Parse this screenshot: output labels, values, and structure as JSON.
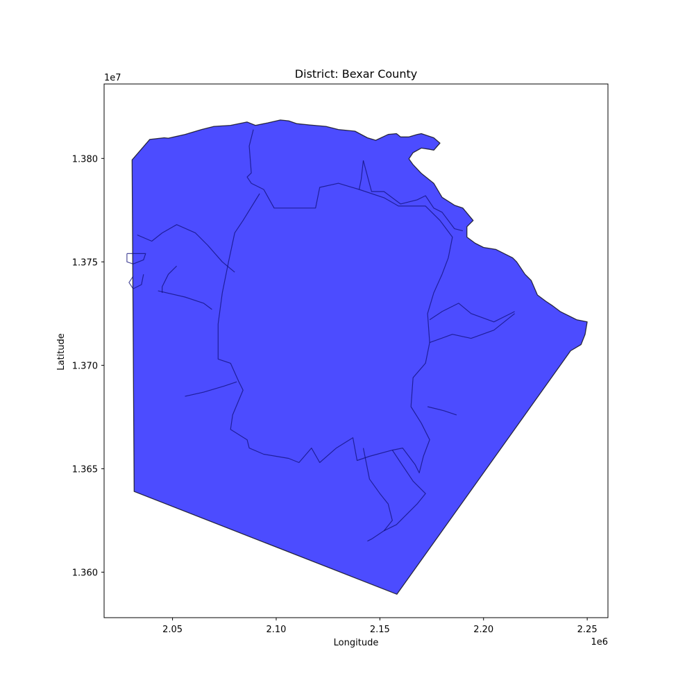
{
  "chart_data": {
    "type": "map",
    "title": "District: Bexar County",
    "xlabel": "Longitude",
    "ylabel": "Latitude",
    "x_offset_label": "1e6",
    "y_offset_label": "1e7",
    "xlim": [
      2.017,
      2.26
    ],
    "ylim": [
      13.578,
      13.836
    ],
    "x_ticks": [
      {
        "value": 2.05,
        "label": "2.05"
      },
      {
        "value": 2.1,
        "label": "2.10"
      },
      {
        "value": 2.15,
        "label": "2.15"
      },
      {
        "value": 2.2,
        "label": "2.20"
      },
      {
        "value": 2.25,
        "label": "2.25"
      }
    ],
    "y_ticks": [
      {
        "value": 13.6,
        "label": "1.360"
      },
      {
        "value": 13.65,
        "label": "1.365"
      },
      {
        "value": 13.7,
        "label": "1.370"
      },
      {
        "value": 13.75,
        "label": "1.375"
      },
      {
        "value": 13.8,
        "label": "1.380"
      }
    ],
    "fill_color": "#0000ff",
    "fill_opacity": 0.7,
    "edge_color": "#000000",
    "county_outline": [
      [
        2.0305,
        13.7993
      ],
      [
        2.039,
        13.8092
      ],
      [
        2.046,
        13.81
      ],
      [
        2.048,
        13.8098
      ],
      [
        2.056,
        13.8116
      ],
      [
        2.064,
        13.814
      ],
      [
        2.07,
        13.8155
      ],
      [
        2.078,
        13.816
      ],
      [
        2.086,
        13.8176
      ],
      [
        2.09,
        13.816
      ],
      [
        2.096,
        13.8172
      ],
      [
        2.102,
        13.8186
      ],
      [
        2.106,
        13.8182
      ],
      [
        2.11,
        13.8168
      ],
      [
        2.116,
        13.8162
      ],
      [
        2.124,
        13.8155
      ],
      [
        2.13,
        13.814
      ],
      [
        2.138,
        13.8132
      ],
      [
        2.144,
        13.81
      ],
      [
        2.148,
        13.8088
      ],
      [
        2.154,
        13.8116
      ],
      [
        2.158,
        13.812
      ],
      [
        2.16,
        13.8104
      ],
      [
        2.164,
        13.8104
      ],
      [
        2.168,
        13.8116
      ],
      [
        2.17,
        13.812
      ],
      [
        2.176,
        13.81
      ],
      [
        2.179,
        13.8074
      ],
      [
        2.176,
        13.804
      ],
      [
        2.174,
        13.8044
      ],
      [
        2.17,
        13.805
      ],
      [
        2.166,
        13.8028
      ],
      [
        2.164,
        13.7998
      ],
      [
        2.166,
        13.797
      ],
      [
        2.17,
        13.7928
      ],
      [
        2.176,
        13.788
      ],
      [
        2.18,
        13.7812
      ],
      [
        2.186,
        13.7774
      ],
      [
        2.19,
        13.776
      ],
      [
        2.195,
        13.77
      ],
      [
        2.192,
        13.767
      ],
      [
        2.192,
        13.762
      ],
      [
        2.196,
        13.759
      ],
      [
        2.2,
        13.757
      ],
      [
        2.206,
        13.756
      ],
      [
        2.21,
        13.754
      ],
      [
        2.214,
        13.752
      ],
      [
        2.216,
        13.75
      ],
      [
        2.22,
        13.744
      ],
      [
        2.223,
        13.741
      ],
      [
        2.226,
        13.734
      ],
      [
        2.23,
        13.731
      ],
      [
        2.233,
        13.729
      ],
      [
        2.237,
        13.726
      ],
      [
        2.241,
        13.724
      ],
      [
        2.245,
        13.722
      ],
      [
        2.25,
        13.721
      ],
      [
        2.249,
        13.715
      ],
      [
        2.247,
        13.71
      ],
      [
        2.242,
        13.707
      ],
      [
        2.1582,
        13.5893
      ],
      [
        2.0315,
        13.639
      ],
      [
        2.0305,
        13.7993
      ]
    ],
    "inner_boundaries": [
      [
        [
          2.089,
          13.814
        ],
        [
          2.087,
          13.806
        ],
        [
          2.088,
          13.793
        ],
        [
          2.086,
          13.791
        ],
        [
          2.088,
          13.788
        ],
        [
          2.094,
          13.785
        ],
        [
          2.099,
          13.776
        ],
        [
          2.11,
          13.776
        ],
        [
          2.119,
          13.776
        ],
        [
          2.121,
          13.786
        ],
        [
          2.13,
          13.788
        ],
        [
          2.14,
          13.785
        ],
        [
          2.141,
          13.79
        ],
        [
          2.142,
          13.799
        ]
      ],
      [
        [
          2.142,
          13.799
        ],
        [
          2.146,
          13.784
        ],
        [
          2.152,
          13.784
        ],
        [
          2.16,
          13.778
        ],
        [
          2.168,
          13.78
        ],
        [
          2.172,
          13.782
        ],
        [
          2.176,
          13.776
        ],
        [
          2.18,
          13.774
        ],
        [
          2.186,
          13.766
        ],
        [
          2.19,
          13.765
        ]
      ],
      [
        [
          2.092,
          13.783
        ],
        [
          2.084,
          13.77
        ],
        [
          2.08,
          13.764
        ],
        [
          2.077,
          13.75
        ],
        [
          2.074,
          13.735
        ],
        [
          2.072,
          13.72
        ],
        [
          2.072,
          13.703
        ],
        [
          2.078,
          13.701
        ],
        [
          2.082,
          13.692
        ],
        [
          2.084,
          13.688
        ],
        [
          2.079,
          13.676
        ],
        [
          2.078,
          13.669
        ],
        [
          2.086,
          13.664
        ],
        [
          2.087,
          13.66
        ],
        [
          2.094,
          13.657
        ],
        [
          2.106,
          13.655
        ],
        [
          2.111,
          13.653
        ],
        [
          2.117,
          13.66
        ],
        [
          2.121,
          13.653
        ],
        [
          2.129,
          13.66
        ],
        [
          2.137,
          13.665
        ],
        [
          2.139,
          13.654
        ],
        [
          2.145,
          13.656
        ],
        [
          2.156,
          13.659
        ],
        [
          2.161,
          13.66
        ],
        [
          2.167,
          13.652
        ],
        [
          2.169,
          13.648
        ],
        [
          2.171,
          13.656
        ],
        [
          2.174,
          13.664
        ],
        [
          2.17,
          13.672
        ],
        [
          2.165,
          13.68
        ],
        [
          2.166,
          13.694
        ],
        [
          2.172,
          13.701
        ],
        [
          2.174,
          13.711
        ],
        [
          2.173,
          13.725
        ],
        [
          2.176,
          13.735
        ],
        [
          2.18,
          13.744
        ],
        [
          2.183,
          13.752
        ],
        [
          2.185,
          13.762
        ],
        [
          2.179,
          13.77
        ],
        [
          2.172,
          13.777
        ],
        [
          2.159,
          13.777
        ],
        [
          2.152,
          13.781
        ],
        [
          2.14,
          13.785
        ]
      ],
      [
        [
          2.033,
          13.763
        ],
        [
          2.04,
          13.76
        ],
        [
          2.045,
          13.764
        ],
        [
          2.052,
          13.768
        ],
        [
          2.061,
          13.764
        ],
        [
          2.067,
          13.758
        ],
        [
          2.074,
          13.75
        ],
        [
          2.08,
          13.745
        ]
      ],
      [
        [
          2.043,
          13.736
        ],
        [
          2.056,
          13.733
        ],
        [
          2.065,
          13.73
        ],
        [
          2.069,
          13.727
        ]
      ],
      [
        [
          2.052,
          13.748
        ],
        [
          2.048,
          13.744
        ],
        [
          2.045,
          13.738
        ],
        [
          2.045,
          13.735
        ]
      ],
      [
        [
          2.056,
          13.685
        ],
        [
          2.065,
          13.687
        ],
        [
          2.075,
          13.69
        ],
        [
          2.081,
          13.692
        ]
      ],
      [
        [
          2.174,
          13.722
        ],
        [
          2.18,
          13.726
        ],
        [
          2.188,
          13.73
        ],
        [
          2.194,
          13.725
        ],
        [
          2.205,
          13.721
        ],
        [
          2.215,
          13.726
        ]
      ],
      [
        [
          2.174,
          13.711
        ],
        [
          2.185,
          13.715
        ],
        [
          2.194,
          13.713
        ],
        [
          2.205,
          13.717
        ],
        [
          2.215,
          13.725
        ]
      ],
      [
        [
          2.173,
          13.68
        ],
        [
          2.181,
          13.678
        ],
        [
          2.187,
          13.676
        ]
      ],
      [
        [
          2.028,
          13.754
        ],
        [
          2.037,
          13.754
        ],
        [
          2.036,
          13.751
        ],
        [
          2.031,
          13.749
        ],
        [
          2.028,
          13.75
        ],
        [
          2.028,
          13.754
        ]
      ],
      [
        [
          2.031,
          13.743
        ],
        [
          2.029,
          13.74
        ],
        [
          2.031,
          13.737
        ],
        [
          2.035,
          13.739
        ],
        [
          2.036,
          13.744
        ]
      ],
      [
        [
          2.142,
          13.66
        ],
        [
          2.145,
          13.645
        ],
        [
          2.15,
          13.638
        ],
        [
          2.154,
          13.633
        ],
        [
          2.156,
          13.625
        ],
        [
          2.152,
          13.62
        ],
        [
          2.146,
          13.616
        ],
        [
          2.144,
          13.615
        ]
      ],
      [
        [
          2.156,
          13.659
        ],
        [
          2.16,
          13.653
        ],
        [
          2.166,
          13.644
        ],
        [
          2.172,
          13.638
        ],
        [
          2.168,
          13.633
        ],
        [
          2.162,
          13.627
        ],
        [
          2.158,
          13.623
        ],
        [
          2.152,
          13.62
        ]
      ]
    ]
  }
}
